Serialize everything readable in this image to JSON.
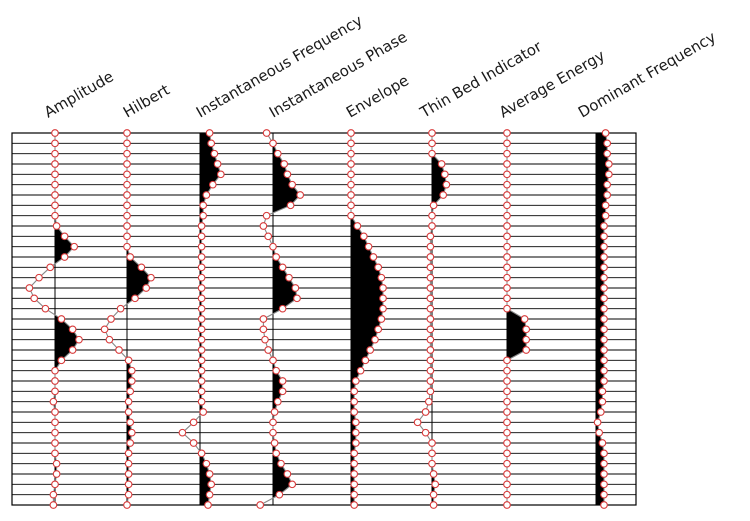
{
  "attributes": [
    {
      "key": "amplitude",
      "label": "Amplitude"
    },
    {
      "key": "hilbert",
      "label": "Hilbert"
    },
    {
      "key": "instantaneous_frequency",
      "label": "Instantaneous Frequency"
    },
    {
      "key": "instantaneous_phase",
      "label": "Instantaneous Phase"
    },
    {
      "key": "envelope",
      "label": "Envelope"
    },
    {
      "key": "thin_bed_indicator",
      "label": "Thin Bed Indicator"
    },
    {
      "key": "average_energy",
      "label": "Average Energy"
    },
    {
      "key": "dominant_frequency",
      "label": "Dominant Frequency"
    }
  ],
  "colors": {
    "trace": "#888888",
    "fill": "#000000",
    "marker_stroke": "#d83a3a",
    "marker_fill": "#ffffff",
    "grid": "#000000"
  },
  "traces": [
    {
      "key": "amplitude",
      "fill": "positive",
      "values": [
        0,
        0,
        0,
        0,
        0,
        0,
        0,
        0,
        0,
        0.05,
        0.3,
        0.6,
        0.3,
        -0.15,
        -0.5,
        -0.8,
        -0.65,
        -0.3,
        0.2,
        0.55,
        0.75,
        0.55,
        0.2,
        0,
        0,
        0,
        -0.05,
        0,
        0,
        0,
        0,
        0,
        0.05,
        0.05,
        0,
        -0.05,
        -0.05
      ]
    },
    {
      "key": "hilbert",
      "fill": "positive",
      "values": [
        0,
        0,
        0,
        0,
        0,
        0,
        0,
        0,
        0,
        0,
        0,
        0,
        0.1,
        0.45,
        0.75,
        0.6,
        0.25,
        -0.2,
        -0.5,
        -0.7,
        -0.55,
        -0.25,
        0.05,
        0.15,
        0.15,
        0.1,
        0.05,
        0.05,
        0.1,
        0.15,
        0.1,
        0.05,
        0.05,
        0.05,
        0.05,
        0.05,
        0
      ]
    },
    {
      "key": "instantaneous_frequency",
      "fill": "positive",
      "values": [
        0.3,
        0.35,
        0.45,
        0.55,
        0.65,
        0.4,
        0.2,
        0.1,
        0.1,
        0.05,
        0.05,
        0.05,
        0.05,
        0.05,
        0.05,
        0.05,
        0.05,
        0.05,
        0.05,
        0.05,
        0.05,
        0.05,
        0.05,
        0.05,
        0.05,
        0.05,
        0.05,
        0.1,
        -0.2,
        -0.55,
        -0.2,
        0.05,
        0.2,
        0.3,
        0.35,
        0.3,
        0.25
      ]
    },
    {
      "key": "instantaneous_phase",
      "fill": "positive",
      "values": [
        -0.2,
        0,
        0.15,
        0.35,
        0.45,
        0.6,
        0.85,
        0.55,
        -0.2,
        -0.3,
        -0.15,
        0,
        0.1,
        0.3,
        0.5,
        0.7,
        0.75,
        0.3,
        -0.3,
        -0.3,
        -0.25,
        -0.15,
        0,
        0.1,
        0.3,
        0.3,
        0.15,
        0.05,
        0,
        0,
        0.05,
        0.1,
        0.25,
        0.45,
        0.6,
        0.2,
        -0.4
      ]
    },
    {
      "key": "envelope",
      "fill": "positive",
      "values": [
        0,
        0,
        0,
        0,
        0,
        0,
        0,
        0,
        0,
        0.2,
        0.4,
        0.55,
        0.7,
        0.85,
        0.95,
        1,
        1,
        1,
        0.95,
        0.85,
        0.75,
        0.6,
        0.45,
        0.3,
        0.15,
        0.1,
        0.1,
        0.1,
        0.15,
        0.15,
        0.15,
        0.1,
        0.1,
        0.1,
        0.1,
        0.1,
        0.1
      ]
    },
    {
      "key": "thin_bed_indicator",
      "fill": "positive",
      "values": [
        0,
        0,
        0,
        0.3,
        0.4,
        0.45,
        0.35,
        0.05,
        0,
        0,
        -0.05,
        -0.05,
        -0.05,
        -0.05,
        -0.05,
        -0.05,
        -0.05,
        -0.05,
        -0.05,
        -0.05,
        -0.05,
        -0.05,
        -0.05,
        -0.05,
        -0.05,
        -0.05,
        -0.1,
        -0.2,
        -0.45,
        -0.2,
        0,
        0,
        0,
        0.05,
        0.1,
        0.05,
        0.05
      ]
    },
    {
      "key": "average_energy",
      "fill": "positive",
      "values": [
        0,
        0,
        0,
        0,
        0,
        0,
        0,
        0,
        0,
        0,
        0,
        0,
        0,
        0,
        0,
        0,
        0,
        0,
        0.55,
        0.6,
        0.6,
        0.6,
        0,
        0,
        0,
        0,
        0,
        0,
        0,
        0,
        0,
        0,
        0,
        0,
        0,
        0,
        0
      ]
    },
    {
      "key": "dominant_frequency",
      "fill": "positive",
      "values": [
        0.3,
        0.35,
        0.35,
        0.4,
        0.4,
        0.35,
        0.35,
        0.3,
        0.3,
        0.25,
        0.25,
        0.25,
        0.25,
        0.25,
        0.25,
        0.25,
        0.25,
        0.25,
        0.25,
        0.25,
        0.25,
        0.25,
        0.25,
        0.25,
        0.25,
        0.2,
        0.2,
        0.15,
        0.05,
        0.1,
        0.2,
        0.25,
        0.25,
        0.25,
        0.25,
        0.25,
        0.25
      ]
    }
  ]
}
